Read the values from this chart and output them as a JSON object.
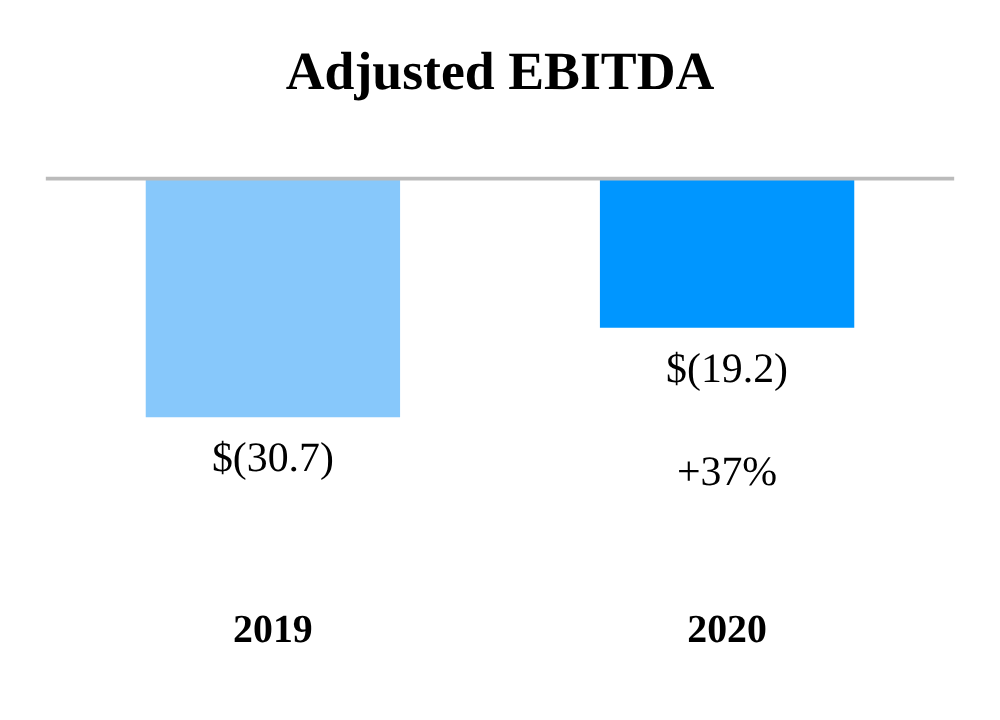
{
  "chart_data": {
    "type": "bar",
    "title": "Adjusted EBITDA",
    "categories": [
      "2019",
      "2020"
    ],
    "values": [
      -30.7,
      -19.2
    ],
    "colors": [
      "#87c8fb",
      "#0096ff"
    ],
    "value_labels": [
      "$(30.7)",
      "$(19.2)"
    ],
    "annotations": [
      "+37%"
    ],
    "grid": false
  }
}
